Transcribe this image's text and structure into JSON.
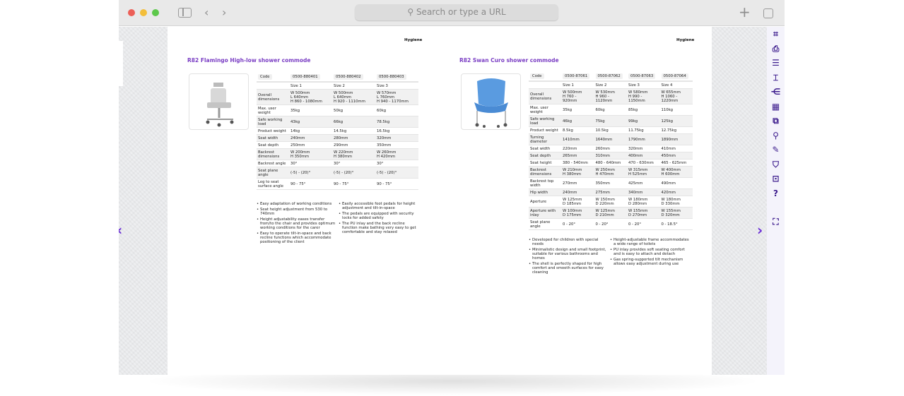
{
  "browser": {
    "url_placeholder": "Search or type a URL",
    "colors": {
      "close": "#ec5f57",
      "minimize": "#f3be3a",
      "maximize": "#5dc84b"
    }
  },
  "toolbar": {
    "accent": "#3b1a8c",
    "items": [
      {
        "icon": "crop-icon",
        "glyph": "⌗"
      },
      {
        "icon": "print-icon",
        "glyph": "⎙"
      },
      {
        "icon": "list-icon",
        "glyph": "☰"
      },
      {
        "icon": "page-number-icon",
        "glyph": "⌶"
      },
      {
        "icon": "share-icon",
        "glyph": "⋲"
      },
      {
        "icon": "grid-icon",
        "glyph": "▦"
      },
      {
        "icon": "pdf-icon",
        "glyph": "⧉"
      },
      {
        "icon": "search-icon",
        "glyph": "⚲"
      },
      {
        "icon": "edit-icon",
        "glyph": "✎"
      },
      {
        "icon": "bookmark-icon",
        "glyph": "⛉"
      },
      {
        "icon": "archive-icon",
        "glyph": "⊡"
      },
      {
        "icon": "help-icon",
        "glyph": "?"
      },
      {
        "icon": "fullscreen-icon",
        "glyph": "⛶"
      }
    ]
  },
  "nav": {
    "prev": "‹",
    "next": "›"
  },
  "left_page": {
    "section": "Hygiene",
    "title": "R82 Flamingo High-low shower commode",
    "table": {
      "code_label": "Code",
      "codes": [
        "0500-880401",
        "0500-880402",
        "0500-880403"
      ],
      "sizes": [
        "Size 1",
        "Size 2",
        "Size 3"
      ],
      "rows": [
        {
          "label": "Overall dimensions",
          "values": [
            "W 500mm\nL 640mm\nH 860 - 1080mm",
            "W 500mm\nL 640mm\nH 920 - 1110mm",
            "W 570mm\nL 760mm\nH 940 - 1170mm"
          ]
        },
        {
          "label": "Max. user weight",
          "values": [
            "35kg",
            "50kg",
            "60kg"
          ]
        },
        {
          "label": "Safe working load",
          "values": [
            "43kg",
            "66kg",
            "78.5kg"
          ]
        },
        {
          "label": "Product weight",
          "values": [
            "14kg",
            "14.5kg",
            "16.5kg"
          ]
        },
        {
          "label": "Seat width",
          "values": [
            "240mm",
            "280mm",
            "320mm"
          ]
        },
        {
          "label": "Seat depth",
          "values": [
            "250mm",
            "290mm",
            "350mm"
          ]
        },
        {
          "label": "Backrest dimensions",
          "values": [
            "W 200mm\nH 350mm",
            "W 220mm\nH 380mm",
            "W 260mm\nH 420mm"
          ]
        },
        {
          "label": "Backrest angle",
          "values": [
            "30°",
            "30°",
            "30°"
          ]
        },
        {
          "label": "Seat plane angle",
          "values": [
            "(-5) - (20)°",
            "(-5) - (20)°",
            "(-5) - (20)°"
          ]
        },
        {
          "label": "Leg to seat surface angle",
          "values": [
            "90 - 75°",
            "90 - 75°",
            "90 - 75°"
          ]
        }
      ]
    },
    "bullets_col1": [
      "Easy adaptation of working conditions",
      "Seat height adjustment from 530 to 740mm",
      "Height adjustability eases transfer from/to the chair and provides optimum working conditions for the carer",
      "Easy to operate tilt-in-space and back recline functions which accommodate positioning of the client"
    ],
    "bullets_col2": [
      "Easily accessible foot pedals for height adjustment and tilt-in-space",
      "The pedals are equipped with security locks for added safety",
      "The PU inlay and the back recline function make bathing very easy to get comfortable and stay relaxed"
    ]
  },
  "right_page": {
    "section": "Hygiene",
    "title": "R82 Swan Curo shower commode",
    "table": {
      "code_label": "Code",
      "codes": [
        "0500-87061",
        "0500-87062",
        "0500-87063",
        "0500-87064"
      ],
      "sizes": [
        "Size 1",
        "Size 2",
        "Size 3",
        "Size 4"
      ],
      "rows": [
        {
          "label": "Overall dimensions",
          "values": [
            "W 500mm\nH 760 -\n920mm",
            "W 530mm\nH 960 -\n1120mm",
            "W 580mm\nH 990 -\n1150mm",
            "W 655mm\nH 1060 -\n1220mm"
          ]
        },
        {
          "label": "Max. user weight",
          "values": [
            "35kg",
            "60kg",
            "85kg",
            "110kg"
          ]
        },
        {
          "label": "Safe working load",
          "values": [
            "46kg",
            "75kg",
            "99kg",
            "125kg"
          ]
        },
        {
          "label": "Product weight",
          "values": [
            "8.5kg",
            "10.5kg",
            "11.75kg",
            "12.75kg"
          ]
        },
        {
          "label": "Turning diameter",
          "values": [
            "1410mm",
            "1640mm",
            "1790mm",
            "1890mm"
          ]
        },
        {
          "label": "Seat width",
          "values": [
            "220mm",
            "260mm",
            "320mm",
            "410mm"
          ]
        },
        {
          "label": "Seat depth",
          "values": [
            "265mm",
            "310mm",
            "400mm",
            "450mm"
          ]
        },
        {
          "label": "Seat height",
          "values": [
            "380 - 540mm",
            "480 - 640mm",
            "470 - 630mm",
            "465 - 625mm"
          ]
        },
        {
          "label": "Backrest dimensions",
          "values": [
            "W 210mm\nH 380mm",
            "W 250mm\nH 470mm",
            "W 315mm\nH 525mm",
            "W 400mm\nH 600mm"
          ]
        },
        {
          "label": "Backrest top width",
          "values": [
            "270mm",
            "350mm",
            "425mm",
            "490mm"
          ]
        },
        {
          "label": "Hip width",
          "values": [
            "240mm",
            "275mm",
            "340mm",
            "420mm"
          ]
        },
        {
          "label": "Aperture",
          "values": [
            "W 125mm\nD 185mm",
            "W 150mm\nD 220mm",
            "W 180mm\nD 280mm",
            "W 180mm\nD 330mm"
          ]
        },
        {
          "label": "Aperture with inlay",
          "values": [
            "W 100mm\nD 175mm",
            "W 125mm\nD 210mm",
            "W 155mm\nD 270mm",
            "W 155mm\nD 320mm"
          ]
        },
        {
          "label": "Seat plane angle",
          "values": [
            "0 - 20°",
            "0 - 20°",
            "0 - 20°",
            "0 - 18.5°"
          ]
        }
      ]
    },
    "bullets_col1": [
      "Developed for children with special needs",
      "Minimalistic design and small footprint, suitable for various bathrooms and homes",
      "The shell is perfectly shaped for high comfort and smooth surfaces for easy cleaning"
    ],
    "bullets_col2": [
      "Height-adjustable frame accommodates a wide range of toilets",
      "PU inlay provides soft seating comfort and is easy to attach and detach",
      "Gas spring-supported tilt mechanism allows easy adjustment during use"
    ]
  }
}
